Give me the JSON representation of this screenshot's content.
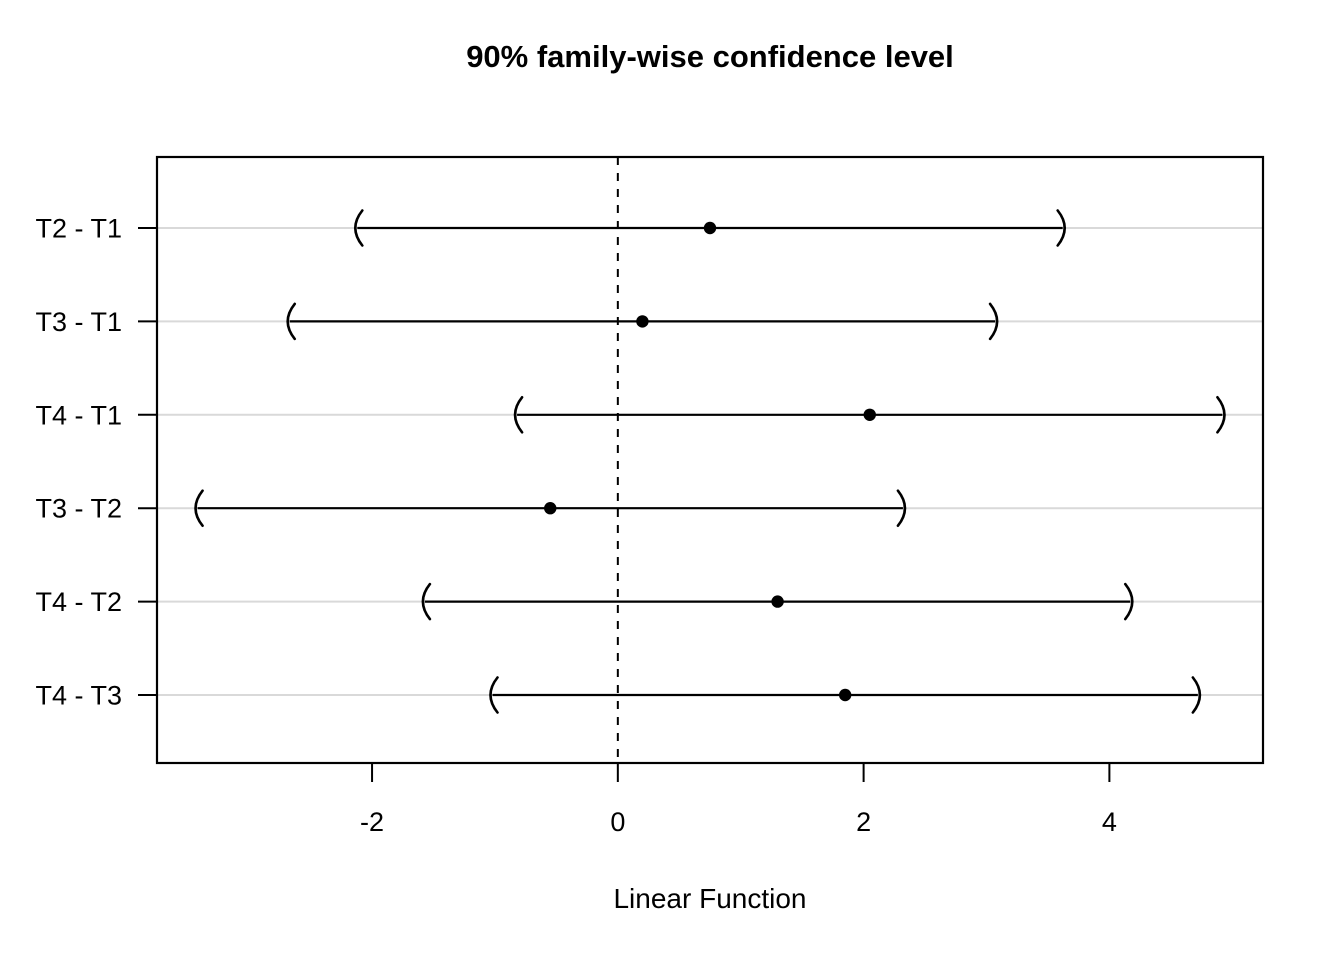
{
  "chart_data": {
    "type": "interval",
    "title": "90% family-wise confidence level",
    "xlabel": "Linear Function",
    "ylabel": "",
    "categories": [
      "T2 - T1",
      "T3 - T1",
      "T4 - T1",
      "T3 - T2",
      "T4 - T2",
      "T4 - T3"
    ],
    "estimates": [
      0.75,
      0.2,
      2.05,
      -0.55,
      1.3,
      1.85
    ],
    "lower": [
      -2.12,
      -2.67,
      -0.82,
      -3.42,
      -1.57,
      -1.02
    ],
    "upper": [
      3.62,
      3.07,
      4.92,
      2.32,
      4.17,
      4.72
    ],
    "xtick_labels": [
      "-2",
      "0",
      "2",
      "4"
    ],
    "xtick_values": [
      -2,
      0,
      2,
      4
    ],
    "xlim": [
      -3.75,
      5.25
    ],
    "reference_line_x": 0,
    "grid": true,
    "legend_position": "none",
    "endpoint_marker": "parentheses",
    "point_marker": "filled-circle",
    "colors": {
      "foreground": "#000000",
      "gridline": "#d9d9d9",
      "background": "#ffffff"
    }
  }
}
